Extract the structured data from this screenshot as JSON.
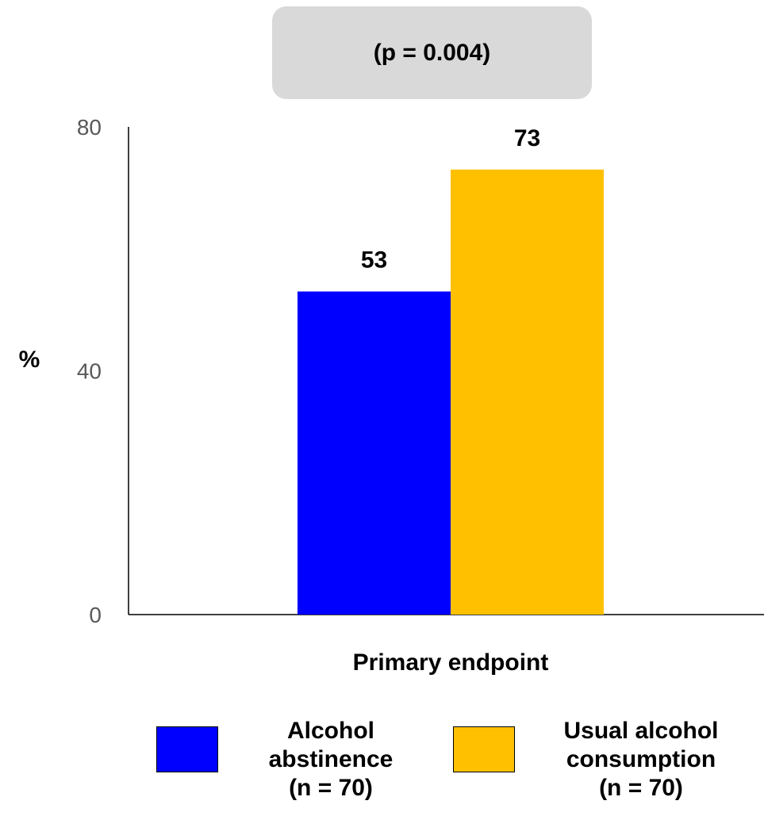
{
  "annotation": "(p = 0.004)",
  "chart_data": {
    "type": "bar",
    "categories": [
      "Primary endpoint"
    ],
    "series": [
      {
        "name": "Alcohol abstinence (n = 70)",
        "values": [
          53
        ],
        "color": "#0000ff"
      },
      {
        "name": "Usual alcohol consumption (n = 70)",
        "values": [
          73
        ],
        "color": "#ffc000"
      }
    ],
    "data_labels": [
      "53",
      "73"
    ],
    "ylabel": "%",
    "xlabel": "Primary endpoint",
    "ylim": [
      0,
      80
    ],
    "yticks": [
      "0",
      "40",
      "80"
    ],
    "grid": false,
    "legend_position": "bottom"
  },
  "legend": {
    "item1": {
      "line1": "Alcohol",
      "line2": "abstinence",
      "line3": "(n = 70)"
    },
    "item2": {
      "line1": "Usual alcohol",
      "line2": "consumption",
      "line3": "(n = 70)"
    }
  }
}
